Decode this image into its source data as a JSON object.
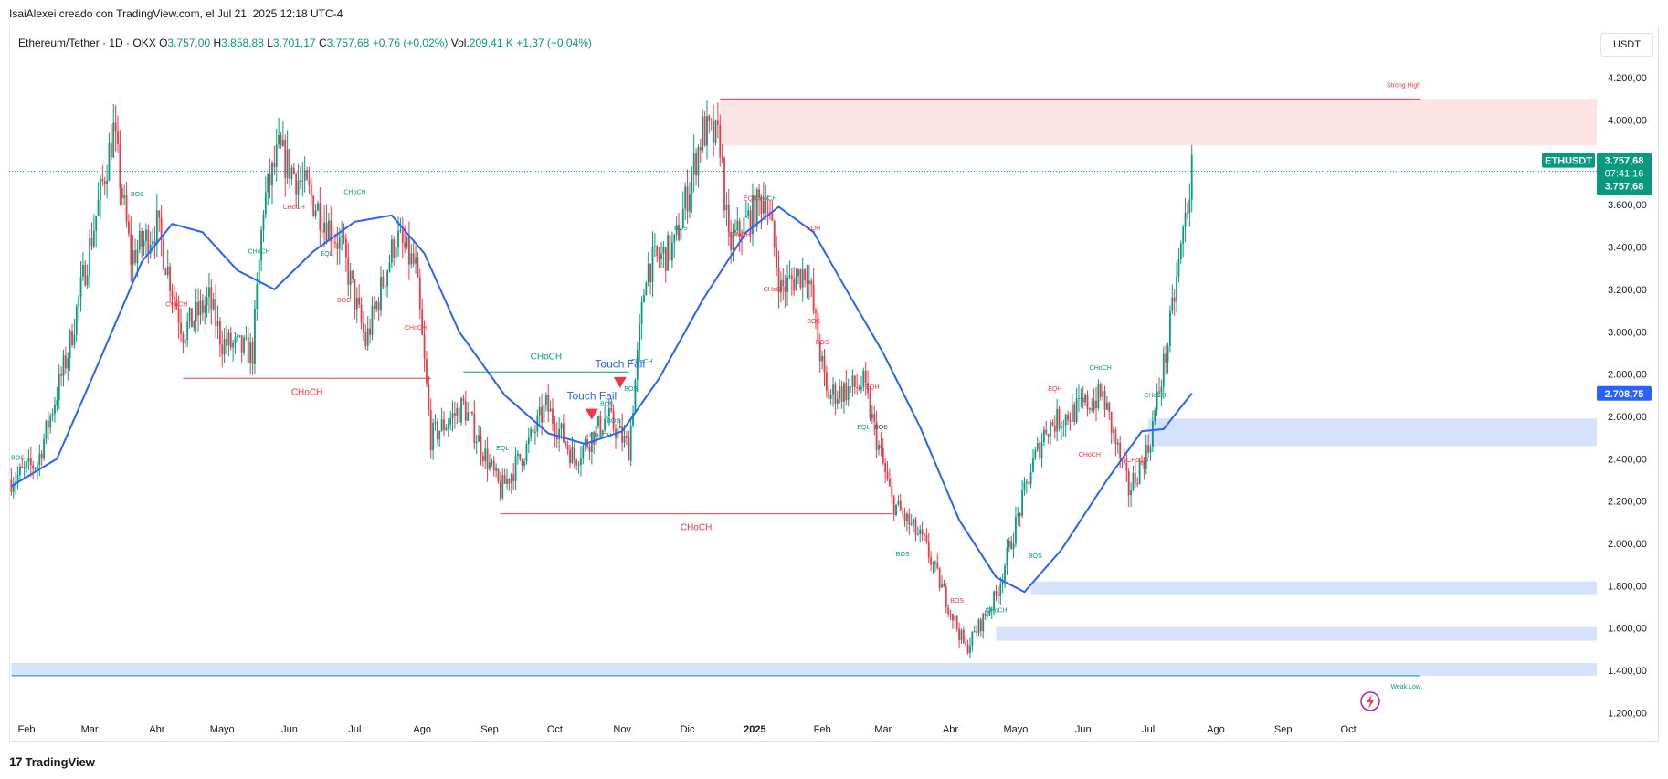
{
  "creator": "IsaiAlexei creado con TradingView.com, el Jul 21, 2025 12:18 UTC-4",
  "legend": {
    "symbol": "Ethereum/Tether · 1D · OKX",
    "o_label": "O",
    "o": "3.757,00",
    "h_label": "H",
    "h": "3.858,88",
    "l_label": "L",
    "l": "3.701,17",
    "c_label": "C",
    "c": "3.757,68",
    "change": "+0,76 (+0,02%)",
    "vol_label": "Vol.",
    "vol": "209,41 K",
    "vol_change": "+1,37 (+0,04%)"
  },
  "currency_button": "USDT",
  "footer_brand": "TradingView",
  "footer_mark": "17",
  "colors": {
    "up": "#089981",
    "down": "#f23645",
    "ma": "#2962ff",
    "zone_red": "#fde1e1",
    "zone_blue": "#d1dffb",
    "price_line": "#089981"
  },
  "chart_data": {
    "type": "candlestick",
    "symbol": "ETHUSDT",
    "ylim": [
      1150,
      4300
    ],
    "y_ticks": [
      "4.200,00",
      "4.000,00",
      "3.800,00",
      "3.600,00",
      "3.400,00",
      "3.200,00",
      "3.000,00",
      "2.800,00",
      "2.600,00",
      "2.400,00",
      "2.200,00",
      "2.000,00",
      "1.800,00",
      "1.600,00",
      "1.400,00",
      "1.200,00"
    ],
    "y_tick_values": [
      4200,
      4000,
      3800,
      3600,
      3400,
      3200,
      3000,
      2800,
      2600,
      2400,
      2200,
      2000,
      1800,
      1600,
      1400,
      1200
    ],
    "x_ticks": [
      "Feb",
      "Mar",
      "Abr",
      "Mayo",
      "Jun",
      "Jul",
      "Ago",
      "Sep",
      "Oct",
      "Nov",
      "Dic",
      "2025",
      "Feb",
      "Mar",
      "Abr",
      "Mayo",
      "Jun",
      "Jul",
      "Ago",
      "Sep",
      "Oct"
    ],
    "x_tick_dates": [
      "2024-02-01",
      "2024-03-01",
      "2024-04-01",
      "2024-05-01",
      "2024-06-01",
      "2024-07-01",
      "2024-08-01",
      "2024-09-01",
      "2024-10-01",
      "2024-11-01",
      "2024-12-01",
      "2025-01-01",
      "2025-02-01",
      "2025-03-01",
      "2025-04-01",
      "2025-05-01",
      "2025-06-01",
      "2025-07-01",
      "2025-08-01",
      "2025-09-01",
      "2025-10-01"
    ],
    "price_path": [
      [
        "2024-01-25",
        2300
      ],
      [
        "2024-02-06",
        2380
      ],
      [
        "2024-02-20",
        2900
      ],
      [
        "2024-03-01",
        3400
      ],
      [
        "2024-03-12",
        3950
      ],
      [
        "2024-03-20",
        3350
      ],
      [
        "2024-04-01",
        3500
      ],
      [
        "2024-04-13",
        3000
      ],
      [
        "2024-04-25",
        3150
      ],
      [
        "2024-05-01",
        2950
      ],
      [
        "2024-05-15",
        2900
      ],
      [
        "2024-05-20",
        3600
      ],
      [
        "2024-05-27",
        3850
      ],
      [
        "2024-06-10",
        3650
      ],
      [
        "2024-06-25",
        3400
      ],
      [
        "2024-07-06",
        2950
      ],
      [
        "2024-07-20",
        3450
      ],
      [
        "2024-07-29",
        3300
      ],
      [
        "2024-08-05",
        2500
      ],
      [
        "2024-08-20",
        2650
      ],
      [
        "2024-09-06",
        2250
      ],
      [
        "2024-09-18",
        2450
      ],
      [
        "2024-09-27",
        2650
      ],
      [
        "2024-10-10",
        2400
      ],
      [
        "2024-10-25",
        2600
      ],
      [
        "2024-11-04",
        2450
      ],
      [
        "2024-11-12",
        3300
      ],
      [
        "2024-11-25",
        3400
      ],
      [
        "2024-12-08",
        3950
      ],
      [
        "2024-12-16",
        3900
      ],
      [
        "2024-12-20",
        3400
      ],
      [
        "2025-01-06",
        3650
      ],
      [
        "2025-01-13",
        3200
      ],
      [
        "2025-01-25",
        3300
      ],
      [
        "2025-02-03",
        2700
      ],
      [
        "2025-02-20",
        2750
      ],
      [
        "2025-03-05",
        2200
      ],
      [
        "2025-03-20",
        2000
      ],
      [
        "2025-04-08",
        1500
      ],
      [
        "2025-04-22",
        1750
      ],
      [
        "2025-05-08",
        2350
      ],
      [
        "2025-05-15",
        2550
      ],
      [
        "2025-06-10",
        2700
      ],
      [
        "2025-06-22",
        2250
      ],
      [
        "2025-07-01",
        2450
      ],
      [
        "2025-07-10",
        2950
      ],
      [
        "2025-07-21",
        3757.68
      ]
    ],
    "moving_average": [
      [
        "2024-01-25",
        2270
      ],
      [
        "2024-02-15",
        2400
      ],
      [
        "2024-03-05",
        2850
      ],
      [
        "2024-03-25",
        3330
      ],
      [
        "2024-04-08",
        3510
      ],
      [
        "2024-04-22",
        3470
      ],
      [
        "2024-05-08",
        3290
      ],
      [
        "2024-05-25",
        3200
      ],
      [
        "2024-06-12",
        3380
      ],
      [
        "2024-07-01",
        3520
      ],
      [
        "2024-07-18",
        3550
      ],
      [
        "2024-08-02",
        3370
      ],
      [
        "2024-08-18",
        3000
      ],
      [
        "2024-09-08",
        2700
      ],
      [
        "2024-09-28",
        2520
      ],
      [
        "2024-10-15",
        2470
      ],
      [
        "2024-11-01",
        2530
      ],
      [
        "2024-11-18",
        2780
      ],
      [
        "2024-12-08",
        3150
      ],
      [
        "2024-12-28",
        3470
      ],
      [
        "2025-01-12",
        3590
      ],
      [
        "2025-01-28",
        3470
      ],
      [
        "2025-02-12",
        3200
      ],
      [
        "2025-03-01",
        2900
      ],
      [
        "2025-03-18",
        2550
      ],
      [
        "2025-04-05",
        2110
      ],
      [
        "2025-04-22",
        1840
      ],
      [
        "2025-05-05",
        1770
      ],
      [
        "2025-05-22",
        1970
      ],
      [
        "2025-06-12",
        2300
      ],
      [
        "2025-06-28",
        2530
      ],
      [
        "2025-07-08",
        2540
      ],
      [
        "2025-07-21",
        2708.75
      ]
    ],
    "zones": [
      {
        "kind": "supply",
        "label": "Strong High",
        "from": "2024-12-16",
        "y1": 3880,
        "y2": 4100
      },
      {
        "kind": "demand",
        "from": "2025-07-01",
        "y1": 2460,
        "y2": 2590
      },
      {
        "kind": "demand",
        "from": "2025-05-08",
        "y1": 1760,
        "y2": 1820
      },
      {
        "kind": "demand",
        "from": "2025-04-22",
        "y1": 1540,
        "y2": 1605
      },
      {
        "kind": "demand",
        "label": "Weak Low",
        "from": "2024-01-25",
        "y1": 1375,
        "y2": 1435
      }
    ],
    "structure_lines": [
      {
        "label": "CHoCH",
        "color": "down",
        "from": "2024-04-13",
        "to": "2024-08-05",
        "y": 2780
      },
      {
        "label": "CHoCH",
        "color": "down",
        "from": "2024-09-06",
        "to": "2025-03-05",
        "y": 2140
      },
      {
        "label": "CHoCH",
        "color": "up",
        "from": "2024-08-20",
        "to": "2024-11-04",
        "y": 2810
      }
    ],
    "annotations": [
      {
        "text": "BOS",
        "date": "2024-01-28",
        "y": 2395,
        "color": "up"
      },
      {
        "text": "BOS",
        "date": "2024-03-23",
        "y": 3640,
        "color": "up"
      },
      {
        "text": "CHoCH",
        "date": "2024-04-10",
        "y": 3120,
        "color": "down"
      },
      {
        "text": "CHoCH",
        "date": "2024-05-18",
        "y": 3370,
        "color": "up"
      },
      {
        "text": "CHoCH",
        "date": "2024-06-03",
        "y": 3580,
        "color": "down"
      },
      {
        "text": "EQL",
        "date": "2024-06-18",
        "y": 3360,
        "color": "up"
      },
      {
        "text": "BOS",
        "date": "2024-06-26",
        "y": 3140,
        "color": "down"
      },
      {
        "text": "CHoCH",
        "date": "2024-07-01",
        "y": 3650,
        "color": "up"
      },
      {
        "text": "CHoCH",
        "date": "2024-07-29",
        "y": 3010,
        "color": "down"
      },
      {
        "text": "CHoCH",
        "date": "2024-11-10",
        "y": 2850,
        "color": "up"
      },
      {
        "text": "EQL",
        "date": "2024-09-07",
        "y": 2440,
        "color": "up"
      },
      {
        "text": "CHoCH",
        "date": "2024-10-22",
        "y": 2500,
        "color": "up"
      },
      {
        "text": "BOS",
        "date": "2024-10-28",
        "y": 2570,
        "color": "up"
      },
      {
        "text": "BOS",
        "date": "2024-11-05",
        "y": 2720,
        "color": "up"
      },
      {
        "text": "BOS",
        "date": "2024-11-28",
        "y": 3480,
        "color": "up"
      },
      {
        "text": "EQH",
        "date": "2024-12-30",
        "y": 3620,
        "color": "down"
      },
      {
        "text": "CHoCH",
        "date": "2024-12-25",
        "y": 3450,
        "color": "down"
      },
      {
        "text": "CHoCH",
        "date": "2025-01-06",
        "y": 3620,
        "color": "up"
      },
      {
        "text": "CHoCH",
        "date": "2025-01-10",
        "y": 3190,
        "color": "down"
      },
      {
        "text": "EQH",
        "date": "2025-01-28",
        "y": 3480,
        "color": "down"
      },
      {
        "text": "BOS",
        "date": "2025-01-28",
        "y": 3040,
        "color": "down"
      },
      {
        "text": "BOS",
        "date": "2025-02-01",
        "y": 2940,
        "color": "down"
      },
      {
        "text": "EQH",
        "date": "2025-02-24",
        "y": 2730,
        "color": "down"
      },
      {
        "text": "EQL",
        "date": "2025-02-20",
        "y": 2540,
        "color": "up"
      },
      {
        "text": "BOS",
        "date": "2025-02-28",
        "y": 2540,
        "color": "down"
      },
      {
        "text": "BOS",
        "date": "2025-03-10",
        "y": 1940,
        "color": "up"
      },
      {
        "text": "BOS",
        "date": "2025-04-04",
        "y": 1720,
        "color": "down"
      },
      {
        "text": "CHoCH",
        "date": "2025-04-22",
        "y": 1675,
        "color": "up"
      },
      {
        "text": "BOS",
        "date": "2025-05-10",
        "y": 1930,
        "color": "up"
      },
      {
        "text": "EQH",
        "date": "2025-05-19",
        "y": 2720,
        "color": "down"
      },
      {
        "text": "CHoCH",
        "date": "2025-06-09",
        "y": 2820,
        "color": "up"
      },
      {
        "text": "CHoCH",
        "date": "2025-06-04",
        "y": 2410,
        "color": "down"
      },
      {
        "text": "CHoCH",
        "date": "2025-06-26",
        "y": 2385,
        "color": "down"
      },
      {
        "text": "CHoCH",
        "date": "2025-07-04",
        "y": 2690,
        "color": "up"
      },
      {
        "text": "BOS",
        "date": "2024-10-25",
        "y": 2650,
        "color": "up"
      },
      {
        "text": "EQL",
        "date": "2025-02-28",
        "y": 2540,
        "color": "up"
      }
    ],
    "signals": [
      {
        "text": "Touch Fail",
        "date": "2024-10-18",
        "y": 2610,
        "label_y": 2680
      },
      {
        "text": "Touch Fail",
        "date": "2024-10-31",
        "y": 2760,
        "label_y": 2830
      }
    ],
    "price_labels": [
      {
        "text": "ETHUSDT",
        "value": "3.757,68",
        "time": "07:41:16",
        "price": "3.757,68",
        "y": 3757.68
      },
      {
        "text": "2.708,75",
        "y": 2708.75
      }
    ]
  }
}
